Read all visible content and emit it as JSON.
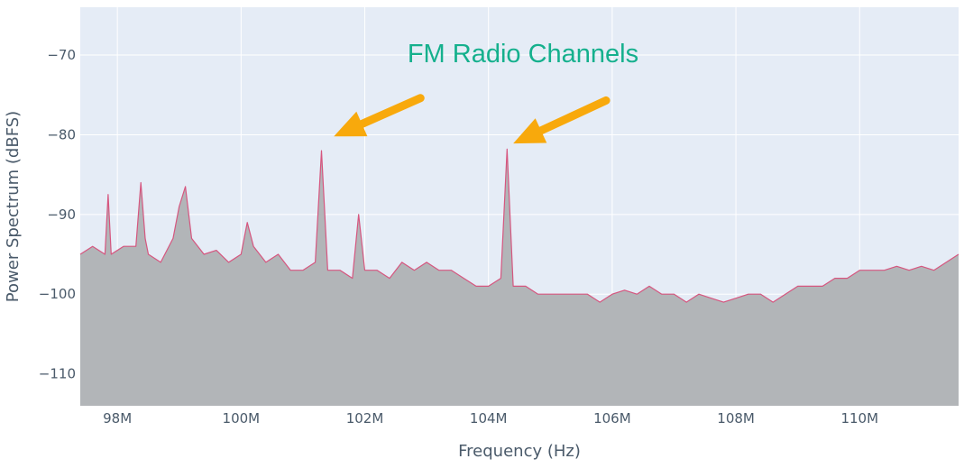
{
  "chart_data": {
    "type": "area",
    "title": "",
    "xlabel": "Frequency (Hz)",
    "ylabel": "Power Spectrum (dBFS)",
    "xlim": [
      97.4,
      111.6
    ],
    "ylim": [
      -114,
      -64
    ],
    "x_unit_multiplier": 1000000,
    "x_ticks": [
      98,
      100,
      102,
      104,
      106,
      108,
      110
    ],
    "x_tick_labels": [
      "98M",
      "100M",
      "102M",
      "104M",
      "106M",
      "108M",
      "110M"
    ],
    "y_ticks": [
      -70,
      -80,
      -90,
      -100,
      -110
    ],
    "y_tick_labels": [
      "−70",
      "−80",
      "−90",
      "−100",
      "−110"
    ],
    "grid": true,
    "legend": false,
    "colors": {
      "plot_bg": "#e5ecf6",
      "grid": "#ffffff",
      "fill": "#b2b5b8",
      "line": "#d6567f",
      "annotation_text": "#15b08d",
      "arrow": "#f8a90c"
    },
    "series": [
      {
        "x": [
          97.4,
          97.6,
          97.8,
          97.85,
          97.9,
          98.1,
          98.3,
          98.38,
          98.45,
          98.5,
          98.7,
          98.9,
          99.0,
          99.1,
          99.2,
          99.4,
          99.6,
          99.8,
          100.0,
          100.1,
          100.2,
          100.4,
          100.6,
          100.8,
          101.0,
          101.2,
          101.3,
          101.4,
          101.6,
          101.8,
          101.9,
          102.0,
          102.2,
          102.4,
          102.6,
          102.8,
          103.0,
          103.2,
          103.4,
          103.6,
          103.8,
          104.0,
          104.2,
          104.3,
          104.4,
          104.6,
          104.8,
          105.0,
          105.2,
          105.4,
          105.6,
          105.8,
          106.0,
          106.2,
          106.4,
          106.6,
          106.8,
          107.0,
          107.2,
          107.4,
          107.6,
          107.8,
          108.0,
          108.2,
          108.4,
          108.6,
          108.8,
          109.0,
          109.2,
          109.4,
          109.6,
          109.8,
          110.0,
          110.2,
          110.4,
          110.6,
          110.8,
          111.0,
          111.2,
          111.4,
          111.6
        ],
        "y": [
          -95,
          -94,
          -95,
          -87.5,
          -95,
          -94,
          -94,
          -86,
          -93,
          -95,
          -96,
          -93,
          -89,
          -86.5,
          -93,
          -95,
          -94.5,
          -96,
          -95,
          -91,
          -94,
          -96,
          -95,
          -97,
          -97,
          -96,
          -82,
          -97,
          -97,
          -98,
          -90,
          -97,
          -97,
          -98,
          -96,
          -97,
          -96,
          -97,
          -97,
          -98,
          -99,
          -99,
          -98,
          -81.8,
          -99,
          -99,
          -100,
          -100,
          -100,
          -100,
          -100,
          -101,
          -100,
          -99.5,
          -100,
          -99,
          -100,
          -100,
          -101,
          -100,
          -100.5,
          -101,
          -100.5,
          -100,
          -100,
          -101,
          -100,
          -99,
          -99,
          -99,
          -98,
          -98,
          -97,
          -97,
          -97,
          -96.5,
          -97,
          -96.5,
          -97,
          -96,
          -95
        ]
      }
    ],
    "annotation": {
      "text": "FM Radio Channels",
      "arrows": [
        {
          "from": [
            102.9,
            -75.4
          ],
          "to": [
            101.5,
            -80.2
          ]
        },
        {
          "from": [
            105.9,
            -75.7
          ],
          "to": [
            104.4,
            -81.1
          ]
        }
      ]
    }
  }
}
